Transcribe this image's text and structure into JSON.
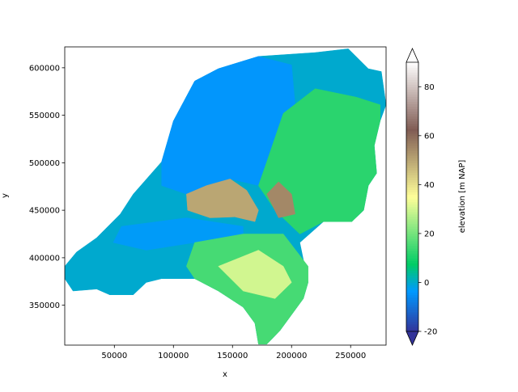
{
  "chart_data": {
    "type": "tripcolor",
    "xlabel": "x",
    "ylabel": "y",
    "colorbar_label": "elevation [m NAP]",
    "xlim": [
      8000,
      280000
    ],
    "ylim": [
      308000,
      622000
    ],
    "xticks": [
      50000,
      100000,
      150000,
      200000,
      250000
    ],
    "yticks": [
      350000,
      400000,
      450000,
      500000,
      550000,
      600000
    ],
    "clim": [
      -20,
      90
    ],
    "cticks": [
      -20,
      0,
      20,
      40,
      60,
      80
    ],
    "colormap": [
      [
        0,
        "#333399"
      ],
      [
        0.15,
        "#0099ff"
      ],
      [
        0.25,
        "#00cc66"
      ],
      [
        0.5,
        "#ffff99"
      ],
      [
        0.75,
        "#805c54"
      ],
      [
        1,
        "#ffffff"
      ]
    ],
    "regions": [
      {
        "value": 0,
        "x": [
          8000,
          18000,
          35000,
          55000,
          66000,
          90000,
          100000,
          118000,
          138000,
          172000,
          220000,
          248000,
          265000,
          276000,
          280000,
          275000,
          270000,
          272000,
          265000,
          261000,
          251000,
          227000,
          207000,
          214000,
          210000,
          200000,
          190000,
          179000,
          172000,
          169000,
          159000,
          138000,
          118000,
          90000,
          77000,
          66000,
          46000,
          35000,
          15000,
          8000
        ],
        "y": [
          391000,
          406000,
          421000,
          446000,
          467000,
          501000,
          544000,
          586000,
          599000,
          612000,
          616000,
          620000,
          599000,
          596000,
          561000,
          544000,
          518000,
          489000,
          476000,
          450000,
          438000,
          438000,
          416000,
          374000,
          357000,
          340000,
          323000,
          309000,
          309000,
          331000,
          348000,
          365000,
          378000,
          378000,
          374000,
          361000,
          361000,
          367000,
          365000,
          378000
        ]
      },
      {
        "value": -4,
        "x": [
          100000,
          118000,
          138000,
          172000,
          200000,
          203000,
          186000,
          179000,
          172000,
          148000,
          128000,
          111000,
          90000,
          90000
        ],
        "y": [
          544000,
          586000,
          599000,
          612000,
          603000,
          561000,
          527000,
          501000,
          476000,
          483000,
          476000,
          467000,
          476000,
          501000
        ]
      },
      {
        "value": -3,
        "x": [
          56000,
          111000,
          159000,
          159000,
          118000,
          77000,
          49000
        ],
        "y": [
          433000,
          442000,
          433000,
          425000,
          416000,
          408000,
          416000
        ]
      },
      {
        "value": 12,
        "x": [
          179000,
          193000,
          220000,
          255000,
          275000,
          275000,
          270000,
          272000,
          265000,
          261000,
          251000,
          227000,
          207000,
          186000,
          172000
        ],
        "y": [
          501000,
          552000,
          578000,
          569000,
          561000,
          544000,
          518000,
          489000,
          476000,
          450000,
          438000,
          438000,
          425000,
          450000,
          476000
        ]
      },
      {
        "value": 15,
        "x": [
          118000,
          159000,
          193000,
          214000,
          214000,
          210000,
          200000,
          190000,
          179000,
          172000,
          169000,
          159000,
          138000,
          118000,
          111000
        ],
        "y": [
          416000,
          425000,
          425000,
          391000,
          374000,
          357000,
          340000,
          323000,
          309000,
          309000,
          331000,
          348000,
          365000,
          378000,
          391000
        ]
      },
      {
        "value": 30,
        "x": [
          138000,
          172000,
          193000,
          200000,
          186000,
          159000
        ],
        "y": [
          391000,
          408000,
          391000,
          374000,
          357000,
          365000
        ]
      },
      {
        "value": 50,
        "x": [
          111000,
          128000,
          148000,
          162000,
          172000,
          169000,
          152000,
          131000,
          112000
        ],
        "y": [
          467000,
          476000,
          483000,
          471000,
          450000,
          438000,
          443000,
          442000,
          450000
        ]
      },
      {
        "value": 55,
        "x": [
          179000,
          189000,
          200000,
          203000,
          189000
        ],
        "y": [
          467000,
          480000,
          467000,
          446000,
          442000
        ]
      }
    ]
  }
}
